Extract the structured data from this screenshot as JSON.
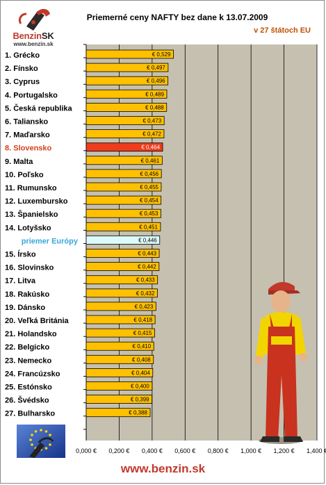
{
  "header": {
    "logo_brand": "Benzin",
    "logo_brand_suffix": "SK",
    "logo_url": "www.benzin.sk",
    "title": "Priemerné ceny NAFTY bez dane k 13.07.2009",
    "subtitle": "v 27 štátoch EU"
  },
  "footer": {
    "url": "www.benzin.sk"
  },
  "colors": {
    "plot_bg": "#c6c0b0",
    "bar_normal": "#ffc000",
    "bar_highlight": "#ee3c1c",
    "bar_average": "#ddfafa",
    "label_highlight": "#d4401c",
    "label_average": "#3aa6dc"
  },
  "chart_data": {
    "type": "bar",
    "orientation": "horizontal",
    "title": "Priemerné ceny NAFTY bez dane k 13.07.2009",
    "subtitle": "v 27 štátoch EU",
    "categories": [
      "1. Grécko",
      "2. Fínsko",
      "3. Cyprus",
      "4. Portugalsko",
      "5. Česká republika",
      "6. Taliansko",
      "7. Maďarsko",
      "8. Slovensko",
      "9. Malta",
      "10. Poľsko",
      "11. Rumunsko",
      "12. Luxembursko",
      "13. Španielsko",
      "14. Lotyšsko",
      "priemer Európy",
      "15. Írsko",
      "16. Slovinsko",
      "17. Litva",
      "18. Rakúsko",
      "19. Dánsko",
      "20. Veľká Británia",
      "21. Holandsko",
      "22. Belgicko",
      "23. Nemecko",
      "24. Francúzsko",
      "25. Estónsko",
      "26. Švédsko",
      "27. Bulharsko"
    ],
    "values": [
      0.529,
      0.497,
      0.496,
      0.489,
      0.488,
      0.473,
      0.472,
      0.464,
      0.461,
      0.456,
      0.455,
      0.454,
      0.453,
      0.451,
      0.446,
      0.443,
      0.442,
      0.433,
      0.432,
      0.423,
      0.418,
      0.415,
      0.41,
      0.408,
      0.404,
      0.4,
      0.399,
      0.388
    ],
    "value_labels": [
      "€ 0,529",
      "€ 0,497",
      "€ 0,496",
      "€ 0,489",
      "€ 0,488",
      "€ 0,473",
      "€ 0,472",
      "€ 0,464",
      "€ 0,461",
      "€ 0,456",
      "€ 0,455",
      "€ 0,454",
      "€ 0,453",
      "€ 0,451",
      "€ 0,446",
      "€ 0,443",
      "€ 0,442",
      "€ 0,433",
      "€ 0,432",
      "€ 0,423",
      "€ 0,418",
      "€ 0,415",
      "€ 0,410",
      "€ 0,408",
      "€ 0,404",
      "€ 0,400",
      "€ 0,399",
      "€ 0,388"
    ],
    "highlight_category": "8. Slovensko",
    "average_category": "priemer Európy",
    "xlim": [
      0,
      1.4
    ],
    "xticks": [
      0,
      0.2,
      0.4,
      0.6,
      0.8,
      1.0,
      1.2,
      1.4
    ],
    "xtick_labels": [
      "0,000 €",
      "0,200 €",
      "0,400 €",
      "0,600 €",
      "0,800 €",
      "1,000 €",
      "1,200 €",
      "1,400 €"
    ],
    "grid": true,
    "legend": "none"
  }
}
